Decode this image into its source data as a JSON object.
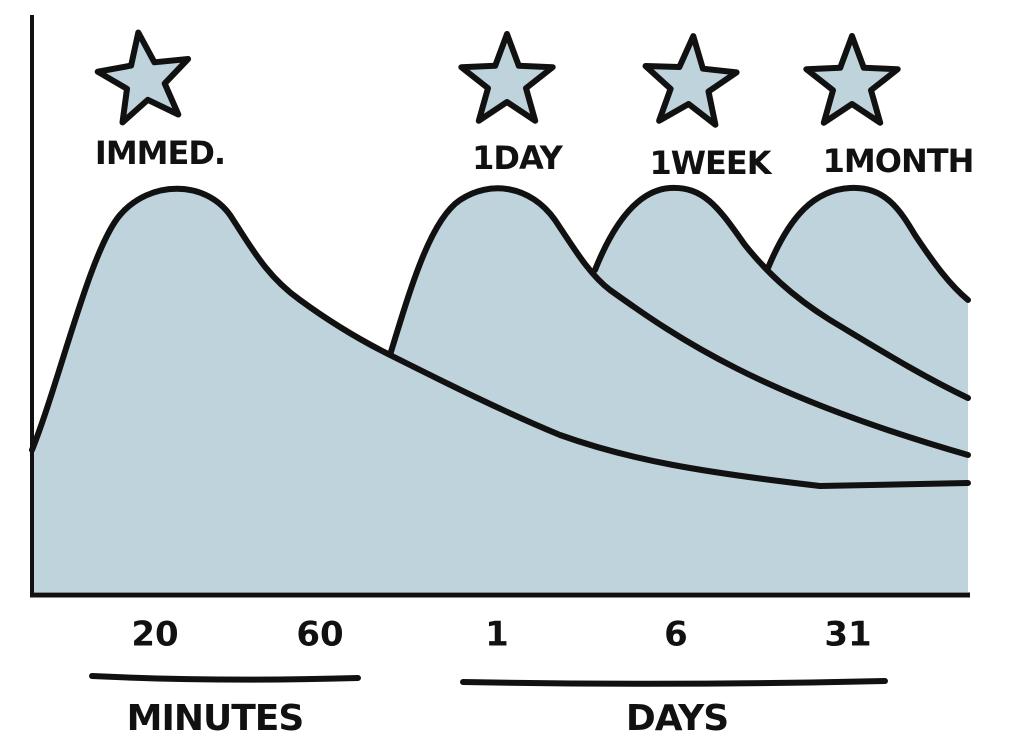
{
  "markers": [
    {
      "label": "IMMED."
    },
    {
      "label": "1DAY"
    },
    {
      "label": "1WEEK"
    },
    {
      "label": "1MONTH"
    }
  ],
  "x_axis": {
    "ticks": [
      "20",
      "60",
      "1",
      "6",
      "31"
    ],
    "groups": [
      "MINUTES",
      "DAYS"
    ]
  }
}
